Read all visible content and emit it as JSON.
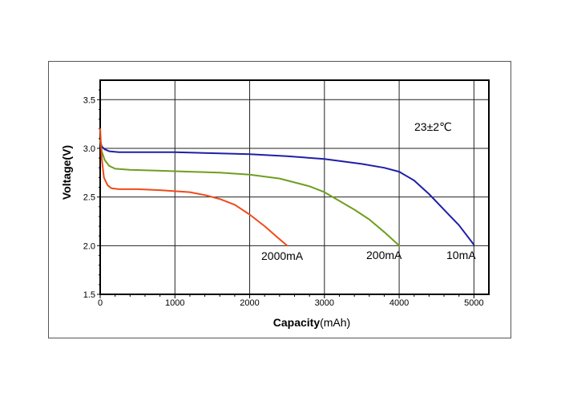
{
  "chart_data": {
    "type": "line",
    "title": "",
    "annotation": "23±2℃",
    "xlabel_bold": "Capacity",
    "xlabel_unit": "(mAh)",
    "ylabel": "Voltage(V)",
    "xlim": [
      0,
      5200
    ],
    "ylim": [
      1.5,
      3.7
    ],
    "xticks": [
      0,
      1000,
      2000,
      3000,
      4000,
      5000
    ],
    "xtick_labels": [
      "0",
      "1000",
      "2000",
      "3000",
      "4000",
      "5000"
    ],
    "yticks": [
      1.5,
      2.0,
      2.5,
      3.0,
      3.5
    ],
    "ytick_labels": [
      "1.5",
      "2.0",
      "2.5",
      "3.0",
      "3.5"
    ],
    "grid": true,
    "series": [
      {
        "name": "10mA",
        "color": "#1f1fa8",
        "x": [
          0,
          20,
          60,
          120,
          250,
          500,
          1000,
          1500,
          2000,
          2500,
          3000,
          3500,
          3800,
          4000,
          4200,
          4400,
          4600,
          4800,
          5000
        ],
        "y": [
          3.08,
          3.02,
          2.99,
          2.97,
          2.96,
          2.96,
          2.96,
          2.95,
          2.94,
          2.92,
          2.89,
          2.84,
          2.8,
          2.76,
          2.67,
          2.53,
          2.37,
          2.21,
          2.01
        ]
      },
      {
        "name": "200mA",
        "color": "#6f9e1f",
        "x": [
          0,
          20,
          60,
          120,
          200,
          400,
          800,
          1200,
          1600,
          2000,
          2400,
          2800,
          3000,
          3200,
          3400,
          3600,
          3800,
          4000
        ],
        "y": [
          3.08,
          2.97,
          2.88,
          2.82,
          2.79,
          2.78,
          2.77,
          2.76,
          2.75,
          2.73,
          2.69,
          2.61,
          2.55,
          2.46,
          2.37,
          2.27,
          2.14,
          2.0
        ]
      },
      {
        "name": "2000mA",
        "color": "#f04a1a",
        "x": [
          0,
          20,
          50,
          100,
          150,
          250,
          500,
          800,
          1000,
          1200,
          1400,
          1600,
          1800,
          2000,
          2200,
          2350,
          2500
        ],
        "y": [
          3.2,
          2.9,
          2.7,
          2.62,
          2.59,
          2.58,
          2.58,
          2.57,
          2.56,
          2.55,
          2.52,
          2.48,
          2.42,
          2.32,
          2.2,
          2.1,
          2.0
        ]
      }
    ],
    "series_labels": [
      "2000mA",
      "200mA",
      "10mA"
    ]
  }
}
